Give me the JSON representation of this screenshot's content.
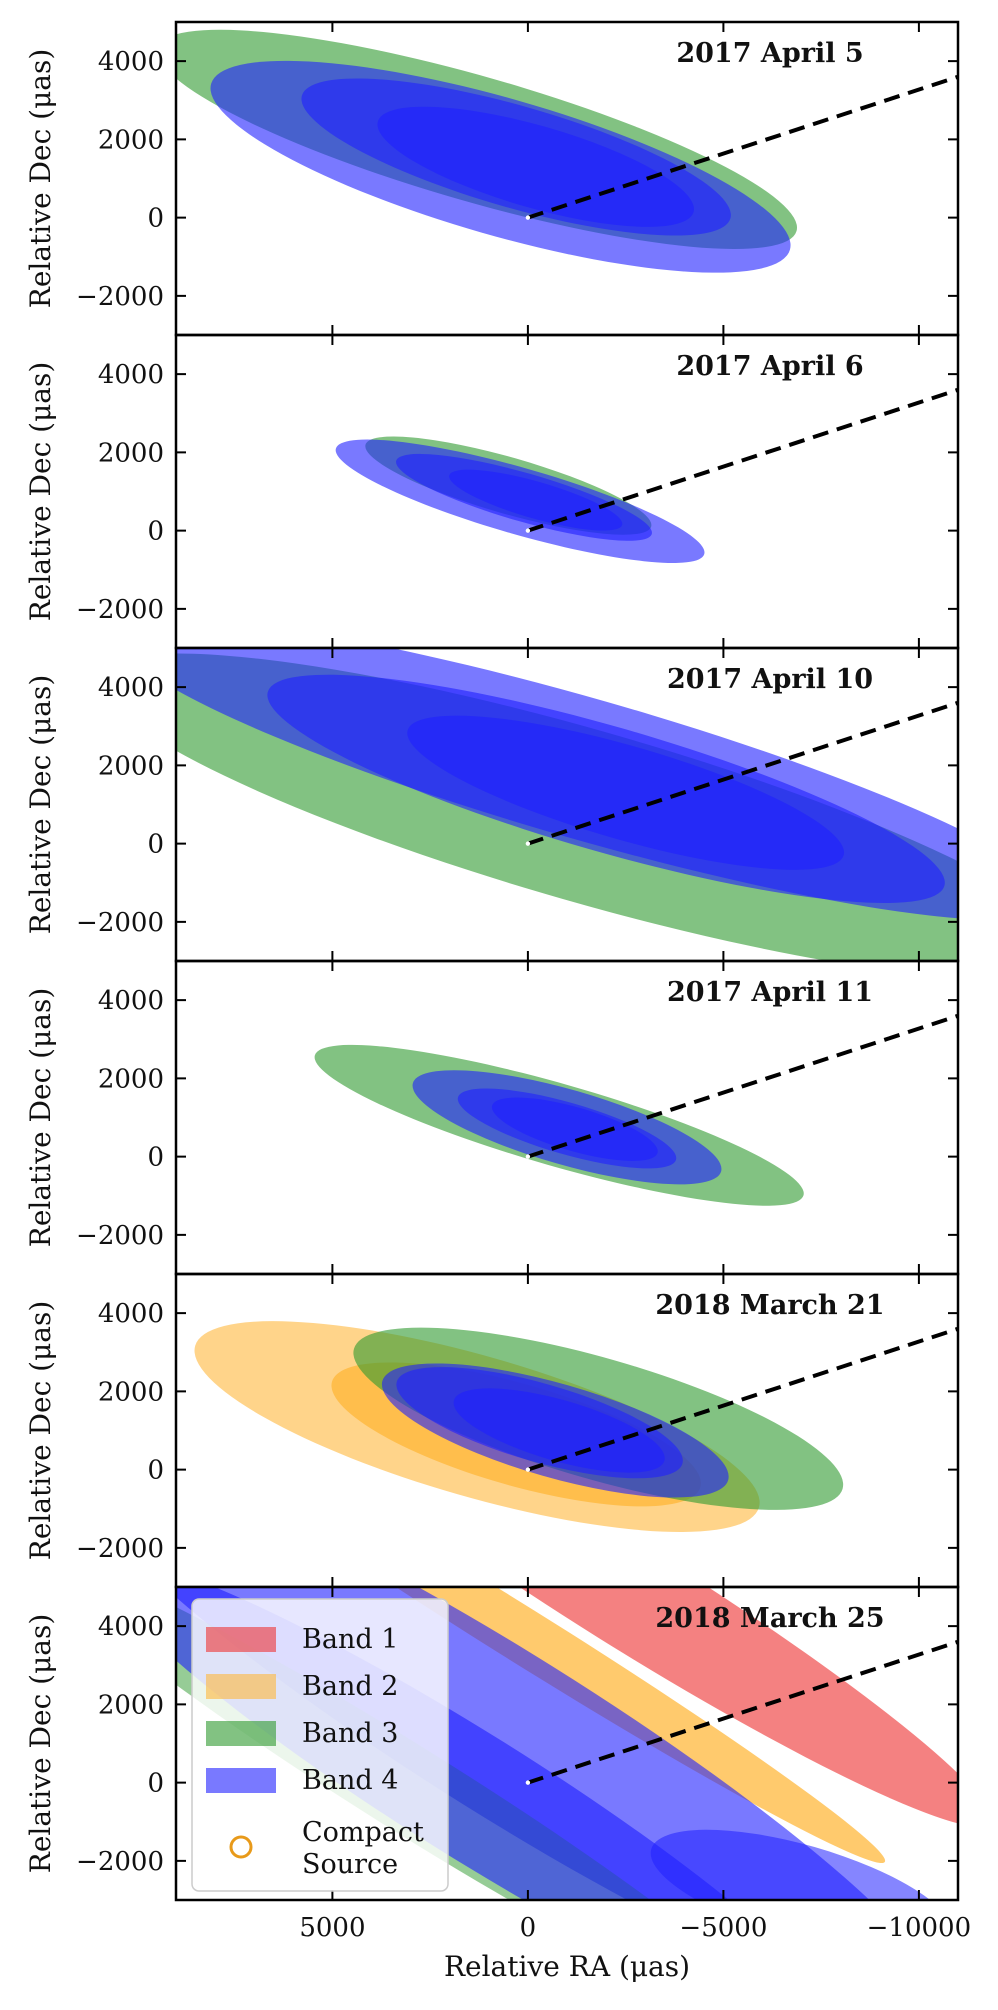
{
  "chart_data": {
    "type": "scatter",
    "xlabel": "Relative RA (μas)",
    "ylabel": "Relative Dec (μas)",
    "xlim": [
      9000,
      -11000
    ],
    "ylim": [
      -3000,
      5000
    ],
    "xticks": [
      5000,
      0,
      -5000,
      -10000
    ],
    "xtick_labels": [
      "5000",
      "0",
      "−5000",
      "−10000"
    ],
    "yticks": [
      4000,
      2000,
      0,
      -2000
    ],
    "ytick_labels": [
      "4000",
      "2000",
      "0",
      "−2000"
    ],
    "colors": {
      "band1": "#ee3333",
      "band2": "#ffb83c",
      "band3": "#2e9a2e",
      "band4": "#2020ff",
      "compact": "#e89a1a"
    },
    "dashed_line": {
      "points": [
        [
          0,
          0
        ],
        [
          -11000,
          3600
        ]
      ]
    },
    "legend": {
      "location": "lower-left",
      "entries": [
        {
          "key": "band1",
          "label": "Band 1"
        },
        {
          "key": "band2",
          "label": "Band 2"
        },
        {
          "key": "band3",
          "label": "Band 3"
        },
        {
          "key": "band4",
          "label": "Band 4"
        },
        {
          "key": "compact",
          "label_lines": [
            "Compact",
            "Source"
          ]
        }
      ]
    },
    "panels": [
      {
        "title": "2017 April 5",
        "regions": [
          {
            "band": "band3",
            "cx": 1300,
            "cy": 2000,
            "a": 8500,
            "b": 1600,
            "angle": 16,
            "opacity": 0.6
          },
          {
            "band": "band4",
            "cx": 700,
            "cy": 1300,
            "a": 7700,
            "b": 1750,
            "angle": 16,
            "opacity": 0.6
          },
          {
            "band": "band4",
            "cx": 300,
            "cy": 1550,
            "a": 5700,
            "b": 1300,
            "angle": 16,
            "opacity": 0.6
          },
          {
            "band": "band4",
            "cx": -200,
            "cy": 1300,
            "a": 4200,
            "b": 1050,
            "angle": 16,
            "opacity": 0.6
          }
        ]
      },
      {
        "title": "2017 April 6",
        "regions": [
          {
            "band": "band3",
            "cx": 500,
            "cy": 1150,
            "a": 3800,
            "b": 720,
            "angle": 16,
            "opacity": 0.6
          },
          {
            "band": "band4",
            "cx": 200,
            "cy": 750,
            "a": 4900,
            "b": 850,
            "angle": 16,
            "opacity": 0.6
          },
          {
            "band": "band4",
            "cx": 100,
            "cy": 850,
            "a": 3400,
            "b": 620,
            "angle": 16,
            "opacity": 0.6
          },
          {
            "band": "band4",
            "cx": -200,
            "cy": 780,
            "a": 2300,
            "b": 470,
            "angle": 16,
            "opacity": 0.6
          }
        ]
      },
      {
        "title": "2017 April 10",
        "regions": [
          {
            "band": "band3",
            "cx": -1500,
            "cy": 700,
            "a": 13000,
            "b": 2200,
            "angle": 16,
            "opacity": 0.6
          },
          {
            "band": "band4",
            "cx": -1500,
            "cy": 1900,
            "a": 12500,
            "b": 1800,
            "angle": 16,
            "opacity": 0.6
          },
          {
            "band": "band4",
            "cx": -2000,
            "cy": 1400,
            "a": 9000,
            "b": 1600,
            "angle": 16,
            "opacity": 0.6
          },
          {
            "band": "band4",
            "cx": -2500,
            "cy": 1300,
            "a": 5800,
            "b": 1200,
            "angle": 16,
            "opacity": 0.6
          }
        ]
      },
      {
        "title": "2017 April 11",
        "regions": [
          {
            "band": "band3",
            "cx": -800,
            "cy": 800,
            "a": 6500,
            "b": 1050,
            "angle": 16,
            "opacity": 0.6
          },
          {
            "band": "band4",
            "cx": -1000,
            "cy": 750,
            "a": 4100,
            "b": 960,
            "angle": 16,
            "opacity": 0.6
          },
          {
            "band": "band4",
            "cx": -1000,
            "cy": 720,
            "a": 2900,
            "b": 660,
            "angle": 16,
            "opacity": 0.6
          },
          {
            "band": "band4",
            "cx": -1200,
            "cy": 700,
            "a": 2200,
            "b": 560,
            "angle": 16,
            "opacity": 0.6
          }
        ]
      },
      {
        "title": "2018 March 21",
        "regions": [
          {
            "band": "band2",
            "cx": 1300,
            "cy": 1100,
            "a": 7500,
            "b": 1800,
            "angle": 16,
            "opacity": 0.6
          },
          {
            "band": "band2",
            "cx": 300,
            "cy": 900,
            "a": 4900,
            "b": 1300,
            "angle": 16,
            "opacity": 0.8
          },
          {
            "band": "band3",
            "cx": -1800,
            "cy": 1300,
            "a": 6500,
            "b": 1550,
            "angle": 16,
            "opacity": 0.6
          },
          {
            "band": "band4",
            "cx": -700,
            "cy": 1000,
            "a": 4600,
            "b": 1200,
            "angle": 16,
            "opacity": 0.6
          },
          {
            "band": "band4",
            "cx": -300,
            "cy": 1200,
            "a": 3800,
            "b": 1000,
            "angle": 16,
            "opacity": 0.6
          },
          {
            "band": "band4",
            "cx": -800,
            "cy": 1000,
            "a": 2800,
            "b": 780,
            "angle": 16,
            "opacity": 0.6
          }
        ]
      },
      {
        "title": "2018 March 25",
        "regions": [
          {
            "band": "band1",
            "cx": -2500,
            "cy": 4800,
            "a": 11000,
            "b": 1300,
            "angle": 32,
            "opacity": 0.62
          },
          {
            "band": "band2",
            "cx": 200,
            "cy": 3800,
            "a": 11000,
            "b": 700,
            "angle": 32,
            "opacity": 0.75
          },
          {
            "band": "band4",
            "cx": 500,
            "cy": 1200,
            "a": 13000,
            "b": 2100,
            "angle": 32,
            "opacity": 0.6
          },
          {
            "band": "band3",
            "cx": 3000,
            "cy": -200,
            "a": 11000,
            "b": 1100,
            "angle": 32,
            "opacity": 0.5
          },
          {
            "band": "band4",
            "cx": 1500,
            "cy": -300,
            "a": 11000,
            "b": 1600,
            "angle": 32,
            "opacity": 0.6
          },
          {
            "band": "band4",
            "cx": -7000,
            "cy": -2800,
            "a": 4000,
            "b": 1200,
            "angle": 16,
            "opacity": 0.55
          }
        ]
      }
    ]
  }
}
